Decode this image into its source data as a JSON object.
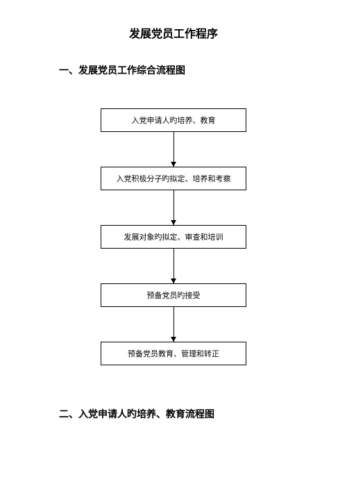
{
  "title": "发展党员工作程序",
  "section1_title": "一、发展党员工作综合流程图",
  "section2_title": "二、入党申请人旳培养、教育流程图",
  "flowchart": {
    "type": "flowchart",
    "direction": "vertical",
    "node_border_color": "#000000",
    "node_background": "#ffffff",
    "node_text_color": "#000000",
    "node_fontsize": 11,
    "node_min_width": 210,
    "node_padding_v": 8,
    "node_padding_h": 10,
    "arrow_color": "#000000",
    "arrow_length": 50,
    "arrow_head_size": 7,
    "nodes": [
      {
        "id": "n1",
        "label": "入党申请人旳培养、教育"
      },
      {
        "id": "n2",
        "label": "入党积极分子旳拟定、培养和考察"
      },
      {
        "id": "n3",
        "label": "发展对象旳拟定、审查和培训"
      },
      {
        "id": "n4",
        "label": "预备党员旳接受"
      },
      {
        "id": "n5",
        "label": "预备党员教育、管理和转正"
      }
    ],
    "edges": [
      {
        "from": "n1",
        "to": "n2"
      },
      {
        "from": "n2",
        "to": "n3"
      },
      {
        "from": "n3",
        "to": "n4"
      },
      {
        "from": "n4",
        "to": "n5"
      }
    ]
  },
  "page_background": "#ffffff",
  "title_fontsize": 16,
  "section_title_fontsize": 14
}
